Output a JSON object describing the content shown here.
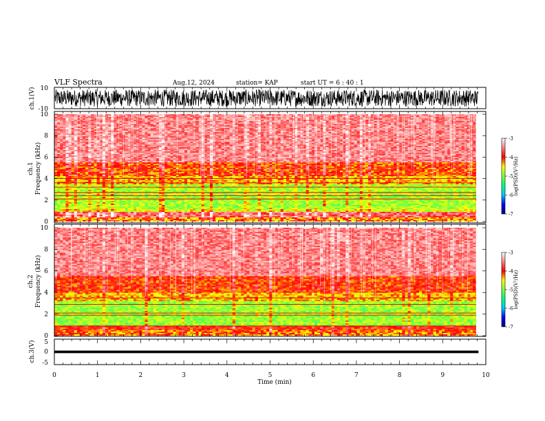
{
  "header": {
    "title": "VLF Spectra",
    "date": "Aug.12, 2024",
    "station": "station= KAP",
    "start": "start UT =  6 : 40 : 1"
  },
  "chart_data": [
    {
      "type": "line",
      "panel": "ch1-waveform",
      "ylabel": "ch.1(V)",
      "ylim": [
        -10,
        10
      ],
      "yticks": [
        "10",
        "-10"
      ],
      "xlim": [
        0,
        10
      ],
      "trace_color": "#000000",
      "trace_envelope": [
        -8,
        8
      ]
    },
    {
      "type": "heatmap",
      "panel": "ch1-spectrogram",
      "ylabel": "ch.1 Frequency (kHz)",
      "ylabel_lines": [
        "ch.1",
        "Frequency (kHz)"
      ],
      "ylim": [
        0,
        10
      ],
      "yticks": [
        "0",
        "2",
        "4",
        "6",
        "8",
        "10"
      ],
      "xlim": [
        0,
        9.83
      ],
      "bands": [
        {
          "from": 0.0,
          "to": 0.4,
          "level": -4.3
        },
        {
          "from": 0.4,
          "to": 0.9,
          "level": -3.6
        },
        {
          "from": 0.9,
          "to": 1.2,
          "level": -4.6
        },
        {
          "from": 1.2,
          "to": 3.4,
          "level": -4.85
        },
        {
          "from": 3.4,
          "to": 4.2,
          "level": -4.4
        },
        {
          "from": 4.2,
          "to": 5.5,
          "level": -4.1
        },
        {
          "from": 5.5,
          "to": 10.0,
          "level": -3.5
        }
      ],
      "lines_khz": [
        2.1,
        2.4,
        2.7,
        3.2,
        3.6,
        4.0
      ]
    },
    {
      "type": "heatmap",
      "panel": "ch2-spectrogram",
      "ylabel": "ch.2 Frequency (kHz)",
      "ylabel_lines": [
        "ch.2",
        "Frequency (kHz)"
      ],
      "ylim": [
        0,
        10
      ],
      "yticks": [
        "0",
        "2",
        "4",
        "6",
        "8",
        "10"
      ],
      "xlim": [
        0,
        9.83
      ],
      "bands": [
        {
          "from": 0.0,
          "to": 0.5,
          "level": -4.2
        },
        {
          "from": 0.5,
          "to": 0.9,
          "level": -4.0
        },
        {
          "from": 0.9,
          "to": 3.2,
          "level": -4.9
        },
        {
          "from": 3.2,
          "to": 4.0,
          "level": -4.4
        },
        {
          "from": 4.0,
          "to": 5.5,
          "level": -4.05
        },
        {
          "from": 5.5,
          "to": 10.0,
          "level": -3.5
        }
      ],
      "lines_khz": [
        0.9,
        1.9,
        2.1,
        2.9,
        3.5
      ]
    },
    {
      "type": "line",
      "panel": "ch3-waveform",
      "ylabel": "ch.3(V)",
      "ylim": [
        -5,
        5
      ],
      "yticks": [
        "5",
        "0",
        "-5"
      ],
      "xlim": [
        0,
        10
      ],
      "xlabel": "Time (min)",
      "xticks": [
        "0",
        "1",
        "2",
        "3",
        "4",
        "5",
        "6",
        "7",
        "8",
        "9",
        "10"
      ],
      "trace_color": "#000000",
      "trace_band": [
        -0.5,
        0.5
      ]
    }
  ],
  "colorbar": {
    "label": "log(PSD)(V²/Hz)",
    "ticks": [
      "-3",
      "-4",
      "-5",
      "-6",
      "-7"
    ],
    "range": [
      -7,
      -3
    ],
    "stops": [
      "#000080",
      "#0000ff",
      "#00c8ff",
      "#00ff80",
      "#ffff00",
      "#ff0000",
      "#ffffff"
    ]
  }
}
